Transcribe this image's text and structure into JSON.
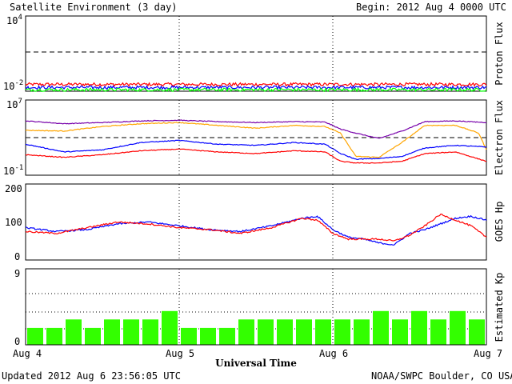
{
  "header": {
    "title": "Satellite Environment (3 day)",
    "begin": "Begin:  2012 Aug 4 0000 UTC"
  },
  "footer": {
    "updated": "Updated 2012 Aug  6 23:56:05 UTC",
    "credit": "NOAA/SWPC Boulder, CO USA",
    "xlabel": "Universal Time"
  },
  "x_ticks": [
    "Aug 4",
    "Aug 5",
    "Aug 6",
    "Aug 7"
  ],
  "colors": {
    "red": "#ff0000",
    "blue": "#0000ff",
    "green": "#00ff00",
    "purple": "#7700aa",
    "orange": "#ffa500",
    "bar": "#33ff00"
  },
  "chart_data": [
    {
      "type": "line",
      "panel": "proton",
      "ylabel": "Proton Flux",
      "y_scale": "log",
      "ylim": [
        0.01,
        10000
      ],
      "ytick_base": "10",
      "ytick_top_exp": "4",
      "ytick_bottom_exp": "-2",
      "threshold": 10,
      "x_range_days": [
        0,
        3
      ],
      "series": [
        {
          "color": "red",
          "level": 0.035
        },
        {
          "color": "blue",
          "level": 0.02
        },
        {
          "color": "green",
          "level": 0.013
        }
      ]
    },
    {
      "type": "line",
      "panel": "electron",
      "ylabel": "Electron Flux",
      "y_scale": "log",
      "ylim": [
        0.1,
        10000000
      ],
      "ytick_base": "10",
      "ytick_top_exp": "7",
      "ytick_bottom_exp": "-1",
      "threshold": 1000,
      "x_range_days": [
        0,
        3
      ],
      "series": [
        {
          "color": "purple",
          "x": [
            0,
            0.25,
            0.5,
            0.75,
            1.0,
            1.25,
            1.5,
            1.75,
            1.95,
            2.05,
            2.15,
            2.3,
            2.45,
            2.6,
            2.8,
            3.0
          ],
          "y": [
            60000,
            30000,
            40000,
            60000,
            70000,
            50000,
            40000,
            50000,
            45000,
            8000,
            3000,
            800,
            5000,
            50000,
            60000,
            40000
          ]
        },
        {
          "color": "orange",
          "x": [
            0,
            0.25,
            0.5,
            0.75,
            1.0,
            1.25,
            1.5,
            1.75,
            1.95,
            2.05,
            2.15,
            2.3,
            2.45,
            2.6,
            2.8,
            2.95,
            3.0
          ],
          "y": [
            6000,
            5000,
            15000,
            30000,
            40000,
            20000,
            10000,
            20000,
            15000,
            3000,
            10,
            8,
            300,
            20000,
            20000,
            3000,
            50
          ]
        },
        {
          "color": "blue",
          "x": [
            0,
            0.25,
            0.5,
            0.75,
            1.0,
            1.25,
            1.5,
            1.75,
            1.95,
            2.05,
            2.15,
            2.3,
            2.45,
            2.6,
            2.8,
            3.0
          ],
          "y": [
            200,
            30,
            50,
            300,
            500,
            200,
            150,
            300,
            200,
            20,
            5,
            6,
            10,
            80,
            150,
            100
          ]
        },
        {
          "color": "red",
          "x": [
            0,
            0.25,
            0.5,
            0.75,
            1.0,
            1.25,
            1.5,
            1.75,
            1.95,
            2.05,
            2.15,
            2.3,
            2.45,
            2.6,
            2.8,
            3.0
          ],
          "y": [
            15,
            8,
            15,
            40,
            60,
            30,
            20,
            40,
            30,
            3,
            2,
            2,
            3,
            20,
            30,
            3
          ]
        }
      ]
    },
    {
      "type": "line",
      "panel": "goes_hp",
      "ylabel": "GOES Hp",
      "ylim": [
        0,
        200
      ],
      "yticks": [
        "200",
        "100",
        "0"
      ],
      "x_range_days": [
        0,
        3
      ],
      "series": [
        {
          "color": "blue",
          "x": [
            0,
            0.2,
            0.4,
            0.6,
            0.8,
            1.0,
            1.2,
            1.4,
            1.6,
            1.8,
            1.9,
            2.0,
            2.1,
            2.2,
            2.3,
            2.4,
            2.5,
            2.6,
            2.7,
            2.8,
            2.9,
            3.0
          ],
          "y": [
            85,
            75,
            80,
            95,
            100,
            90,
            80,
            75,
            90,
            110,
            115,
            80,
            60,
            55,
            45,
            40,
            70,
            80,
            95,
            110,
            115,
            105
          ]
        },
        {
          "color": "red",
          "x": [
            0,
            0.2,
            0.4,
            0.6,
            0.8,
            1.0,
            1.2,
            1.4,
            1.6,
            1.8,
            1.9,
            2.0,
            2.1,
            2.2,
            2.3,
            2.4,
            2.5,
            2.6,
            2.7,
            2.8,
            2.9,
            3.0
          ],
          "y": [
            75,
            70,
            85,
            100,
            95,
            85,
            80,
            70,
            85,
            110,
            105,
            70,
            55,
            55,
            55,
            50,
            65,
            90,
            120,
            105,
            90,
            60
          ]
        }
      ]
    },
    {
      "type": "bar",
      "panel": "kp",
      "ylabel": "Estimated Kp",
      "ylim": [
        0,
        9
      ],
      "yticks": [
        "9",
        "0"
      ],
      "x_range_days": [
        0,
        3
      ],
      "bar_hours": 3,
      "values": [
        2,
        2,
        3,
        2,
        3,
        3,
        3,
        4,
        2,
        2,
        2,
        3,
        3,
        3,
        3,
        3,
        3,
        3,
        4,
        3,
        4,
        3,
        4,
        3
      ]
    }
  ]
}
